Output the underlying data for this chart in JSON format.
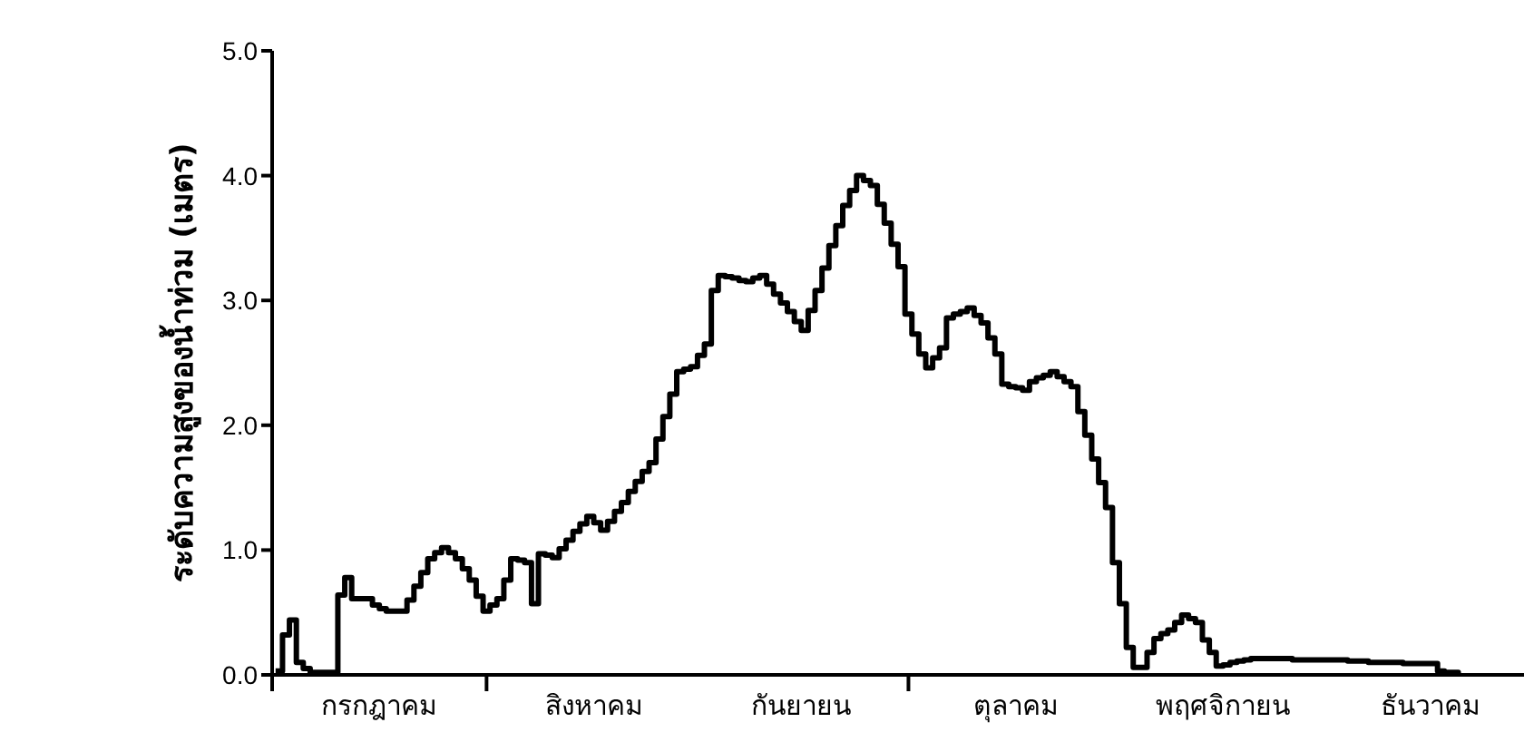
{
  "chart_data": {
    "type": "step",
    "ylabel": "ระดับความสูงของน้ำท่วม (เมตร)",
    "categories": [
      null,
      null,
      null,
      null,
      null,
      null,
      null,
      null,
      null,
      null,
      null,
      null,
      null,
      null,
      null,
      "กรกฎาคม",
      null,
      null,
      null,
      null,
      null,
      null,
      null,
      null,
      null,
      null,
      null,
      null,
      null,
      null,
      null,
      null,
      null,
      null,
      null,
      null,
      null,
      null,
      null,
      null,
      null,
      null,
      null,
      null,
      null,
      null,
      "สิงหาคม",
      null,
      null,
      null,
      null,
      null,
      null,
      null,
      null,
      null,
      null,
      null,
      null,
      null,
      null,
      null,
      null,
      null,
      null,
      null,
      null,
      null,
      null,
      null,
      null,
      null,
      null,
      null,
      null,
      null,
      "กันยายน",
      null,
      null,
      null,
      null,
      null,
      null,
      null,
      null,
      null,
      null,
      null,
      null,
      null,
      null,
      null,
      null,
      null,
      null,
      null,
      null,
      null,
      null,
      null,
      null,
      null,
      null,
      null,
      null,
      null,
      null,
      "ตุลาคม",
      null,
      null,
      null,
      null,
      null,
      null,
      null,
      null,
      null,
      null,
      null,
      null,
      null,
      null,
      null,
      null,
      null,
      null,
      null,
      null,
      null,
      null,
      null,
      null,
      null,
      null,
      null,
      null,
      null,
      "พฤศจิกายน",
      null,
      null,
      null,
      null,
      null,
      null,
      null,
      null,
      null,
      null,
      null,
      null,
      null,
      null,
      null,
      null,
      null,
      null,
      null,
      null,
      null,
      null,
      null,
      null,
      null,
      null,
      null,
      null,
      null,
      "ธันวาคม",
      null,
      null,
      null,
      null,
      null,
      null,
      null,
      null,
      null,
      null,
      null,
      null,
      null
    ],
    "series": [
      {
        "color": "#000000",
        "values": [
          0.03,
          0.32,
          0.44,
          0.1,
          0.05,
          0.02,
          0.02,
          0.02,
          0.02,
          0.64,
          0.78,
          0.61,
          0.61,
          0.61,
          0.56,
          0.53,
          0.51,
          0.51,
          0.51,
          0.6,
          0.71,
          0.82,
          0.93,
          0.98,
          1.02,
          0.98,
          0.93,
          0.85,
          0.76,
          0.63,
          0.51,
          0.56,
          0.61,
          0.76,
          0.93,
          0.92,
          0.9,
          0.57,
          0.97,
          0.96,
          0.94,
          1.01,
          1.08,
          1.15,
          1.21,
          1.27,
          1.22,
          1.16,
          1.23,
          1.31,
          1.38,
          1.47,
          1.55,
          1.63,
          1.7,
          1.89,
          2.07,
          2.25,
          2.43,
          2.45,
          2.47,
          2.56,
          2.65,
          3.08,
          3.2,
          3.19,
          3.18,
          3.16,
          3.15,
          3.18,
          3.2,
          3.13,
          3.05,
          2.98,
          2.91,
          2.83,
          2.76,
          2.92,
          3.08,
          3.26,
          3.44,
          3.6,
          3.76,
          3.88,
          4.0,
          3.96,
          3.92,
          3.77,
          3.62,
          3.45,
          3.27,
          2.89,
          2.73,
          2.57,
          2.46,
          2.54,
          2.62,
          2.86,
          2.89,
          2.91,
          2.94,
          2.88,
          2.82,
          2.7,
          2.57,
          2.33,
          2.31,
          2.3,
          2.28,
          2.35,
          2.38,
          2.4,
          2.43,
          2.39,
          2.35,
          2.31,
          2.11,
          1.92,
          1.73,
          1.54,
          1.34,
          0.9,
          0.57,
          0.22,
          0.06,
          0.06,
          0.18,
          0.29,
          0.33,
          0.36,
          0.42,
          0.48,
          0.45,
          0.42,
          0.28,
          0.18,
          0.07,
          0.08,
          0.1,
          0.11,
          0.12,
          0.13,
          0.13,
          0.13,
          0.13,
          0.13,
          0.13,
          0.12,
          0.12,
          0.12,
          0.12,
          0.12,
          0.12,
          0.12,
          0.12,
          0.11,
          0.11,
          0.11,
          0.1,
          0.1,
          0.1,
          0.1,
          0.1,
          0.09,
          0.09,
          0.09,
          0.09,
          0.09,
          0.03,
          0.02,
          0.02,
          0.01,
          null,
          null,
          null,
          null,
          null,
          null,
          null,
          null,
          null
        ]
      }
    ],
    "ylim": [
      0,
      5
    ],
    "yticks": [
      {
        "value": 0,
        "label": "0.0"
      },
      {
        "value": 1,
        "label": "1.0"
      },
      {
        "value": 2,
        "label": "2.0"
      },
      {
        "value": 3,
        "label": "3.0"
      },
      {
        "value": 4,
        "label": "4.0"
      },
      {
        "value": 5,
        "label": "5.0"
      }
    ],
    "marker": "none",
    "line_style": "solid"
  }
}
